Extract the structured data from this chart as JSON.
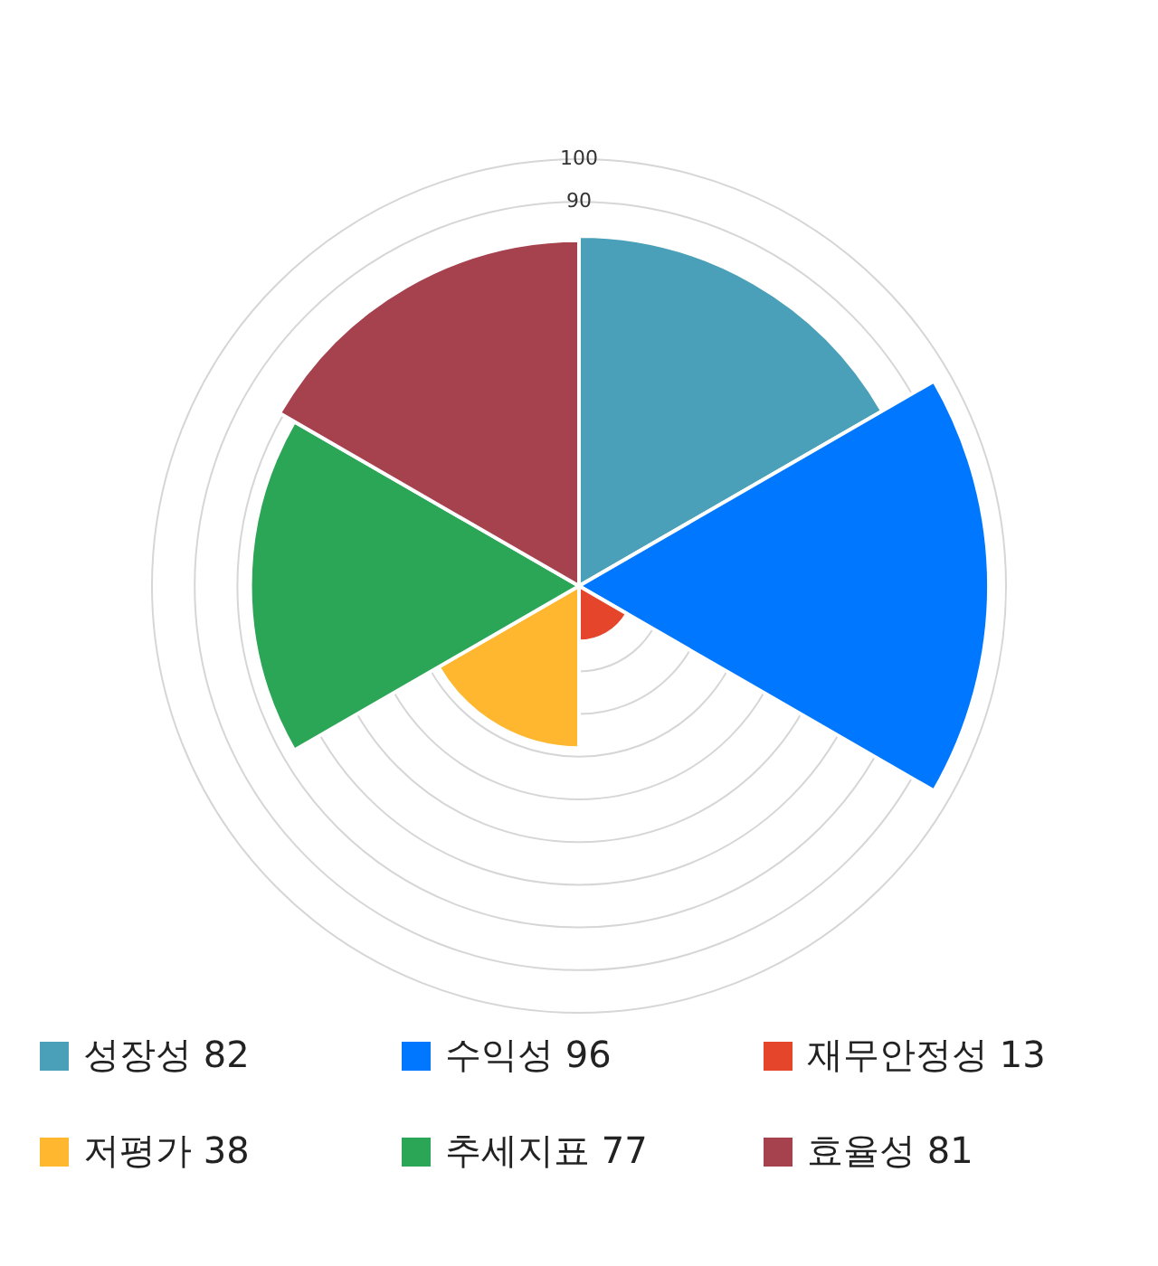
{
  "chart_data": {
    "type": "other",
    "categories": [
      "성장성",
      "수익성",
      "재무안정성",
      "저평가",
      "추세지표",
      "효율성"
    ],
    "values": [
      82,
      96,
      13,
      38,
      77,
      81
    ],
    "colors": [
      "#4aa0b8",
      "#0077ff",
      "#e5452a",
      "#ffb730",
      "#2ba556",
      "#a6414e"
    ],
    "annotations": [
      "100",
      "90"
    ],
    "data_labels": true
  }
}
